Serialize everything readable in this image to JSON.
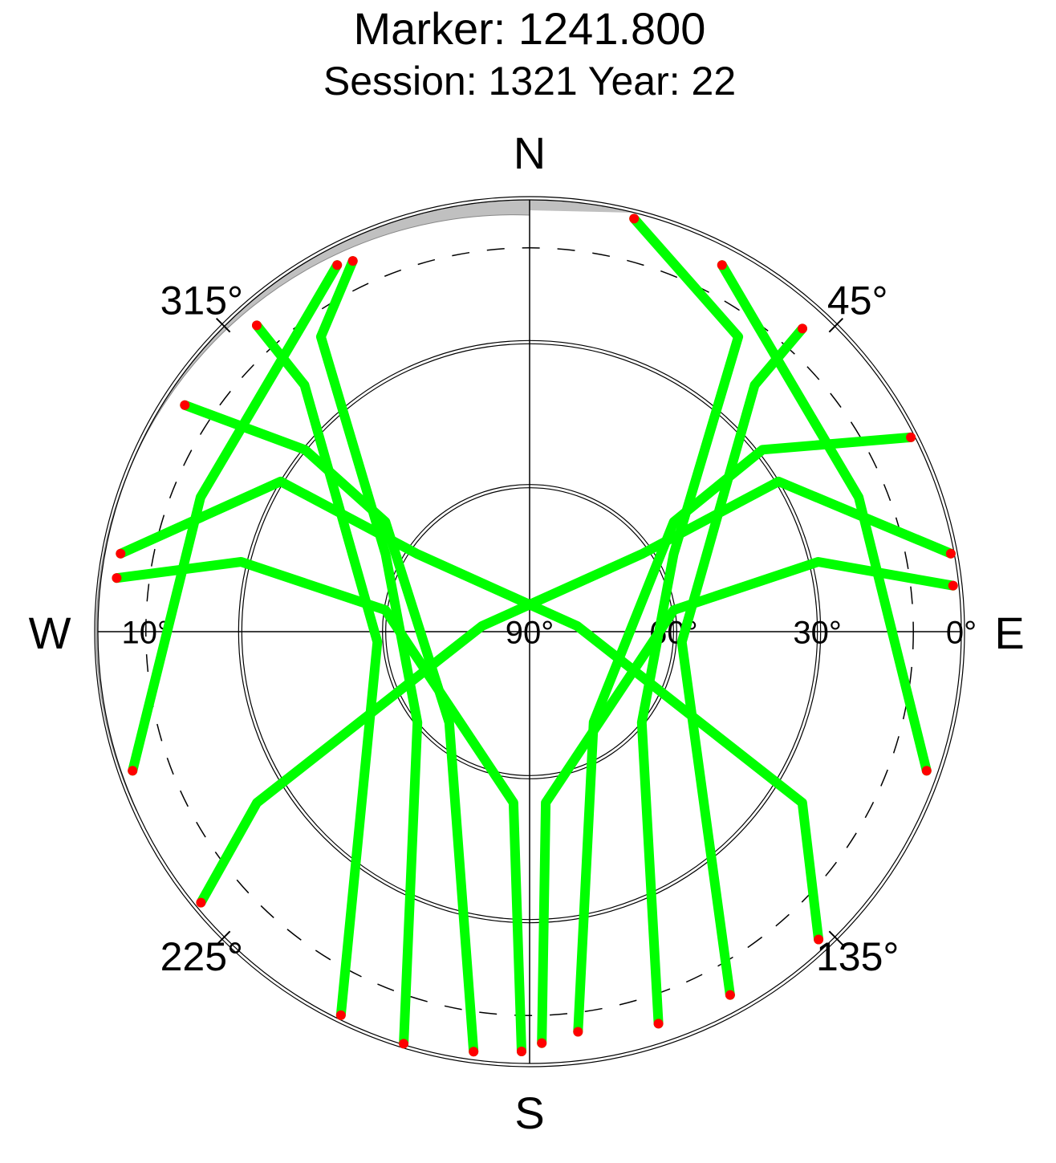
{
  "chart_data": {
    "type": "skyplot",
    "title": "Marker: 1241.800",
    "subtitle": "Session: 1321 Year: 22",
    "compass": [
      {
        "value": 0,
        "label": "N"
      },
      {
        "value": 90,
        "label": "E"
      },
      {
        "value": 180,
        "label": "S"
      },
      {
        "value": 270,
        "label": "W"
      }
    ],
    "azticks": [
      {
        "value": 45,
        "label": "45°"
      },
      {
        "value": 135,
        "label": "135°"
      },
      {
        "value": 225,
        "label": "225°"
      },
      {
        "value": 315,
        "label": "315°"
      }
    ],
    "rlim": [
      90,
      0
    ],
    "rticks": [
      {
        "value": 90,
        "label": "90°"
      },
      {
        "value": 60,
        "label": "60°"
      },
      {
        "value": 30,
        "label": "30°"
      },
      {
        "value": 10,
        "label": "10°"
      },
      {
        "value": 0,
        "label": "0°"
      }
    ],
    "dashed_elevation": 10,
    "color": "#00ff00",
    "endpoint_color": "#ff0000",
    "series": [
      {
        "azimuth": [
          334.5,
          324.7,
          298.3,
          231,
          197
        ],
        "elevation": [
          4.4,
          14.7,
          55.9,
          59.9,
          0.2
        ]
      },
      {
        "azimuth": [
          14.2,
          35.3,
          61.7,
          129,
          161.8
        ],
        "elevation": [
          1.2,
          14.7,
          55.9,
          59.9,
          4.0
        ]
      },
      {
        "azimuth": [
          280.8,
          301.1,
          304.7,
          83.3,
          122.1,
          136.8
        ],
        "elevation": [
          3.2,
          29.4,
          61.6,
          80,
          22.9,
          2.0
        ]
      },
      {
        "azimuth": [
          79.5,
          58.9,
          55.3,
          276.7,
          237.9,
          230.5
        ],
        "elevation": [
          0.7,
          29.4,
          61.6,
          80,
          22.9,
          1.2
        ]
      },
      {
        "azimuth": [
          303.3,
          309,
          307.3,
          221.5,
          187.6
        ],
        "elevation": [
          4.0,
          29.8,
          52.2,
          64.7,
          1.7
        ]
      },
      {
        "azimuth": [
          63,
          52,
          52.7,
          144.7,
          173.1
        ],
        "elevation": [
          0.8,
          28.4,
          52.2,
          66.9,
          6.0
        ]
      },
      {
        "azimuth": [
          277.4,
          283.6,
          278.5,
          185.4,
          181.1
        ],
        "elevation": [
          3.2,
          28.1,
          59.6,
          54.2,
          2.5
        ]
      },
      {
        "azimuth": [
          83.8,
          76.4,
          81.5,
          174.6,
          178.3
        ],
        "elevation": [
          1.2,
          28.1,
          59.6,
          54.2,
          4.2
        ]
      },
      {
        "azimuth": [
          318.3,
          317.6,
          266.1,
          206.2
        ],
        "elevation": [
          4.5,
          20.4,
          58.2,
          0.9
        ]
      },
      {
        "azimuth": [
          42.0,
          42.4,
          93.9,
          151.1
        ],
        "elevation": [
          5.0,
          20.4,
          58.2,
          3.5
        ]
      },
      {
        "azimuth": [
          250.7,
          292.2,
          324.1,
          332.3
        ],
        "elevation": [
          2.3,
          15.9,
          10.0,
          3.7
        ]
      },
      {
        "azimuth": [
          109.3,
          67.8,
          35.9,
          27.7
        ],
        "elevation": [
          2.3,
          15.9,
          10.0,
          3.7
        ]
      }
    ]
  }
}
